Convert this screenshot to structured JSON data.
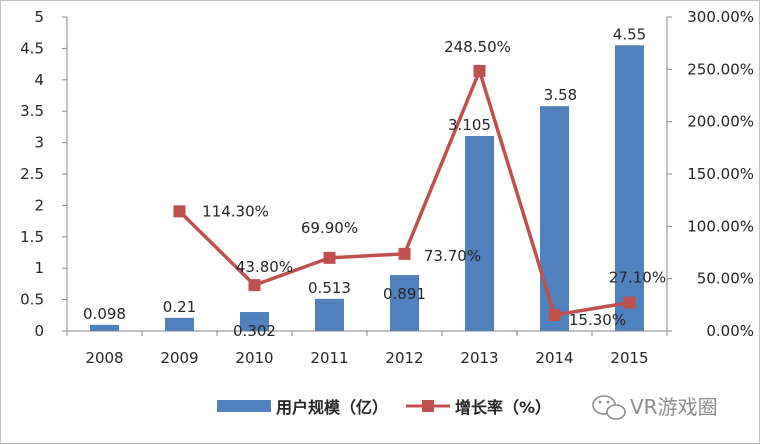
{
  "chart_data": {
    "type": "bar+line",
    "categories": [
      "2008",
      "2009",
      "2010",
      "2011",
      "2012",
      "2013",
      "2014",
      "2015"
    ],
    "series": [
      {
        "name": "用户规模（亿）",
        "type": "bar",
        "axis": "left",
        "values": [
          0.098,
          0.21,
          0.302,
          0.513,
          0.891,
          3.105,
          3.58,
          4.55
        ],
        "labels": [
          "0.098",
          "0.21",
          "0.302",
          "0.513",
          "0.891",
          "3.105",
          "3.58",
          "4.55"
        ],
        "color": "#4f81bd"
      },
      {
        "name": "增长率（%）",
        "type": "line",
        "axis": "right",
        "values": [
          null,
          114.3,
          43.8,
          69.9,
          73.7,
          248.5,
          15.3,
          27.1
        ],
        "labels": [
          "",
          "114.30%",
          "43.80%",
          "69.90%",
          "73.70%",
          "248.50%",
          "15.30%",
          "27.10%"
        ],
        "color": "#c0504d"
      }
    ],
    "y_left": {
      "ylim": [
        0,
        5
      ],
      "ticks": [
        "0",
        "0.5",
        "1",
        "1.5",
        "2",
        "2.5",
        "3",
        "3.5",
        "4",
        "4.5",
        "5"
      ]
    },
    "y_right": {
      "ylim": [
        0,
        300
      ],
      "ticks": [
        "0.00%",
        "50.00%",
        "100.00%",
        "150.00%",
        "200.00%",
        "250.00%",
        "300.00%"
      ]
    },
    "legend_position": "bottom",
    "grid": false
  },
  "watermark": {
    "icon": "wechat-icon",
    "text": "VR游戏圈"
  }
}
